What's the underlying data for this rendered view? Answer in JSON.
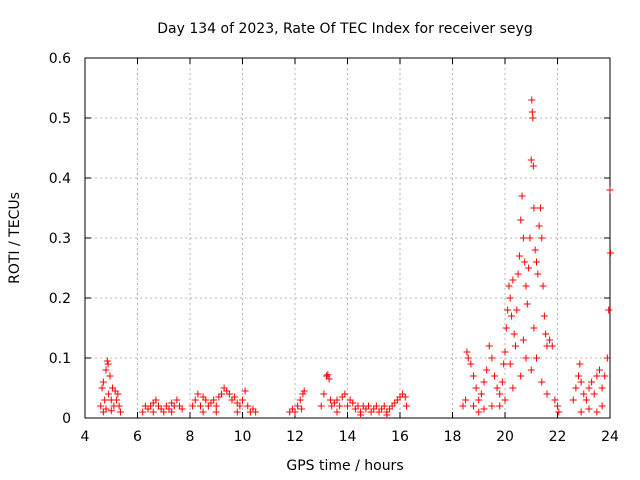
{
  "chart_data": {
    "type": "scatter",
    "title": "Day 134 of 2023, Rate Of TEC Index for receiver seyg",
    "xlabel": "GPS time / hours",
    "ylabel": "ROTI / TECUs",
    "xlim": [
      4,
      24
    ],
    "ylim": [
      0,
      0.6
    ],
    "xticks": [
      4,
      6,
      8,
      10,
      12,
      14,
      16,
      18,
      20,
      22,
      24
    ],
    "yticks": [
      0,
      0.1,
      0.2,
      0.3,
      0.4,
      0.5,
      0.6
    ],
    "xtick_labels": [
      "4",
      "6",
      "8",
      "10",
      "12",
      "14",
      "16",
      "18",
      "20",
      "22",
      "24"
    ],
    "ytick_labels": [
      "0",
      "0.1",
      "0.2",
      "0.3",
      "0.4",
      "0.5",
      "0.6"
    ],
    "grid": true,
    "marker": "+",
    "color": "#ff0000",
    "series": [
      {
        "name": "ROTI",
        "points": [
          [
            4.6,
            0.02
          ],
          [
            4.65,
            0.05
          ],
          [
            4.7,
            0.06
          ],
          [
            4.75,
            0.03
          ],
          [
            4.8,
            0.08
          ],
          [
            4.85,
            0.095
          ],
          [
            4.88,
            0.09
          ],
          [
            4.9,
            0.04
          ],
          [
            4.95,
            0.07
          ],
          [
            5.0,
            0.03
          ],
          [
            5.05,
            0.05
          ],
          [
            5.1,
            0.02
          ],
          [
            5.15,
            0.045
          ],
          [
            5.2,
            0.03
          ],
          [
            5.25,
            0.04
          ],
          [
            5.3,
            0.02
          ],
          [
            5.35,
            0.01
          ],
          [
            4.7,
            0.01
          ],
          [
            4.8,
            0.015
          ],
          [
            5.0,
            0.012
          ],
          [
            6.2,
            0.01
          ],
          [
            6.3,
            0.02
          ],
          [
            6.4,
            0.015
          ],
          [
            6.5,
            0.02
          ],
          [
            6.6,
            0.01
          ],
          [
            6.7,
            0.03
          ],
          [
            6.8,
            0.02
          ],
          [
            6.9,
            0.015
          ],
          [
            7.0,
            0.01
          ],
          [
            7.1,
            0.02
          ],
          [
            7.2,
            0.015
          ],
          [
            7.3,
            0.025
          ],
          [
            7.4,
            0.02
          ],
          [
            7.5,
            0.03
          ],
          [
            7.6,
            0.02
          ],
          [
            7.7,
            0.015
          ],
          [
            7.3,
            0.01
          ],
          [
            6.6,
            0.025
          ],
          [
            8.1,
            0.02
          ],
          [
            8.2,
            0.03
          ],
          [
            8.3,
            0.04
          ],
          [
            8.4,
            0.02
          ],
          [
            8.5,
            0.035
          ],
          [
            8.6,
            0.03
          ],
          [
            8.7,
            0.02
          ],
          [
            8.8,
            0.025
          ],
          [
            8.9,
            0.03
          ],
          [
            9.0,
            0.02
          ],
          [
            9.1,
            0.035
          ],
          [
            9.2,
            0.04
          ],
          [
            9.3,
            0.05
          ],
          [
            9.4,
            0.045
          ],
          [
            9.5,
            0.04
          ],
          [
            9.6,
            0.03
          ],
          [
            9.7,
            0.035
          ],
          [
            9.8,
            0.025
          ],
          [
            9.9,
            0.02
          ],
          [
            10.0,
            0.03
          ],
          [
            10.1,
            0.045
          ],
          [
            10.2,
            0.02
          ],
          [
            10.3,
            0.01
          ],
          [
            10.4,
            0.015
          ],
          [
            10.5,
            0.01
          ],
          [
            9.0,
            0.01
          ],
          [
            8.5,
            0.01
          ],
          [
            9.8,
            0.01
          ],
          [
            11.8,
            0.01
          ],
          [
            11.9,
            0.015
          ],
          [
            12.0,
            0.01
          ],
          [
            12.1,
            0.02
          ],
          [
            12.2,
            0.03
          ],
          [
            12.3,
            0.04
          ],
          [
            12.35,
            0.045
          ],
          [
            12.25,
            0.015
          ],
          [
            13.0,
            0.02
          ],
          [
            13.1,
            0.04
          ],
          [
            13.2,
            0.07
          ],
          [
            13.25,
            0.072
          ],
          [
            13.3,
            0.065
          ],
          [
            13.35,
            0.03
          ],
          [
            13.4,
            0.02
          ],
          [
            13.5,
            0.025
          ],
          [
            13.6,
            0.03
          ],
          [
            13.7,
            0.02
          ],
          [
            13.8,
            0.035
          ],
          [
            13.9,
            0.04
          ],
          [
            14.0,
            0.02
          ],
          [
            14.1,
            0.03
          ],
          [
            14.2,
            0.025
          ],
          [
            14.3,
            0.015
          ],
          [
            14.4,
            0.02
          ],
          [
            14.5,
            0.01
          ],
          [
            14.6,
            0.02
          ],
          [
            14.7,
            0.015
          ],
          [
            14.8,
            0.02
          ],
          [
            14.9,
            0.01
          ],
          [
            15.0,
            0.015
          ],
          [
            15.1,
            0.02
          ],
          [
            15.2,
            0.01
          ],
          [
            15.3,
            0.015
          ],
          [
            15.4,
            0.02
          ],
          [
            15.5,
            0.01
          ],
          [
            15.6,
            0.015
          ],
          [
            15.7,
            0.02
          ],
          [
            15.8,
            0.025
          ],
          [
            15.9,
            0.03
          ],
          [
            16.0,
            0.035
          ],
          [
            16.1,
            0.04
          ],
          [
            16.2,
            0.035
          ],
          [
            16.25,
            0.02
          ],
          [
            13.6,
            0.01
          ],
          [
            14.5,
            0.005
          ],
          [
            15.5,
            0.005
          ],
          [
            18.4,
            0.02
          ],
          [
            18.5,
            0.03
          ],
          [
            18.55,
            0.11
          ],
          [
            18.6,
            0.1
          ],
          [
            18.7,
            0.09
          ],
          [
            18.8,
            0.07
          ],
          [
            18.9,
            0.05
          ],
          [
            19.0,
            0.03
          ],
          [
            19.1,
            0.04
          ],
          [
            19.2,
            0.06
          ],
          [
            19.3,
            0.08
          ],
          [
            19.4,
            0.12
          ],
          [
            19.5,
            0.1
          ],
          [
            19.6,
            0.07
          ],
          [
            19.7,
            0.05
          ],
          [
            19.8,
            0.04
          ],
          [
            19.9,
            0.06
          ],
          [
            19.95,
            0.09
          ],
          [
            20.0,
            0.11
          ],
          [
            20.05,
            0.15
          ],
          [
            20.1,
            0.18
          ],
          [
            20.15,
            0.22
          ],
          [
            20.2,
            0.2
          ],
          [
            20.25,
            0.17
          ],
          [
            20.3,
            0.23
          ],
          [
            20.35,
            0.14
          ],
          [
            20.4,
            0.12
          ],
          [
            20.45,
            0.18
          ],
          [
            20.5,
            0.24
          ],
          [
            20.55,
            0.27
          ],
          [
            20.6,
            0.33
          ],
          [
            20.65,
            0.37
          ],
          [
            20.7,
            0.3
          ],
          [
            20.75,
            0.26
          ],
          [
            20.8,
            0.22
          ],
          [
            20.85,
            0.19
          ],
          [
            20.9,
            0.25
          ],
          [
            20.95,
            0.3
          ],
          [
            21.0,
            0.43
          ],
          [
            21.02,
            0.53
          ],
          [
            21.04,
            0.51
          ],
          [
            21.06,
            0.5
          ],
          [
            21.08,
            0.42
          ],
          [
            21.1,
            0.35
          ],
          [
            21.15,
            0.28
          ],
          [
            21.2,
            0.26
          ],
          [
            21.25,
            0.24
          ],
          [
            21.3,
            0.32
          ],
          [
            21.35,
            0.35
          ],
          [
            21.4,
            0.3
          ],
          [
            21.45,
            0.22
          ],
          [
            21.5,
            0.17
          ],
          [
            21.55,
            0.14
          ],
          [
            21.6,
            0.12
          ],
          [
            21.7,
            0.13
          ],
          [
            21.8,
            0.12
          ],
          [
            21.9,
            0.03
          ],
          [
            22.0,
            0.02
          ],
          [
            22.05,
            0.01
          ],
          [
            19.0,
            0.01
          ],
          [
            19.5,
            0.02
          ],
          [
            20.0,
            0.03
          ],
          [
            20.3,
            0.05
          ],
          [
            20.6,
            0.07
          ],
          [
            20.8,
            0.1
          ],
          [
            21.0,
            0.08
          ],
          [
            21.2,
            0.1
          ],
          [
            21.4,
            0.06
          ],
          [
            21.6,
            0.04
          ],
          [
            20.2,
            0.09
          ],
          [
            20.7,
            0.13
          ],
          [
            21.1,
            0.15
          ],
          [
            19.8,
            0.02
          ],
          [
            19.2,
            0.015
          ],
          [
            18.8,
            0.02
          ],
          [
            22.6,
            0.03
          ],
          [
            22.7,
            0.05
          ],
          [
            22.8,
            0.07
          ],
          [
            22.85,
            0.09
          ],
          [
            22.9,
            0.06
          ],
          [
            23.0,
            0.04
          ],
          [
            23.1,
            0.03
          ],
          [
            23.2,
            0.05
          ],
          [
            23.3,
            0.06
          ],
          [
            23.4,
            0.04
          ],
          [
            23.5,
            0.07
          ],
          [
            23.6,
            0.08
          ],
          [
            23.7,
            0.05
          ],
          [
            23.8,
            0.07
          ],
          [
            23.9,
            0.1
          ],
          [
            23.95,
            0.18
          ],
          [
            24.0,
            0.38
          ],
          [
            24.02,
            0.275
          ],
          [
            23.7,
            0.02
          ],
          [
            23.2,
            0.015
          ],
          [
            22.9,
            0.01
          ],
          [
            23.5,
            0.01
          ]
        ]
      }
    ]
  }
}
